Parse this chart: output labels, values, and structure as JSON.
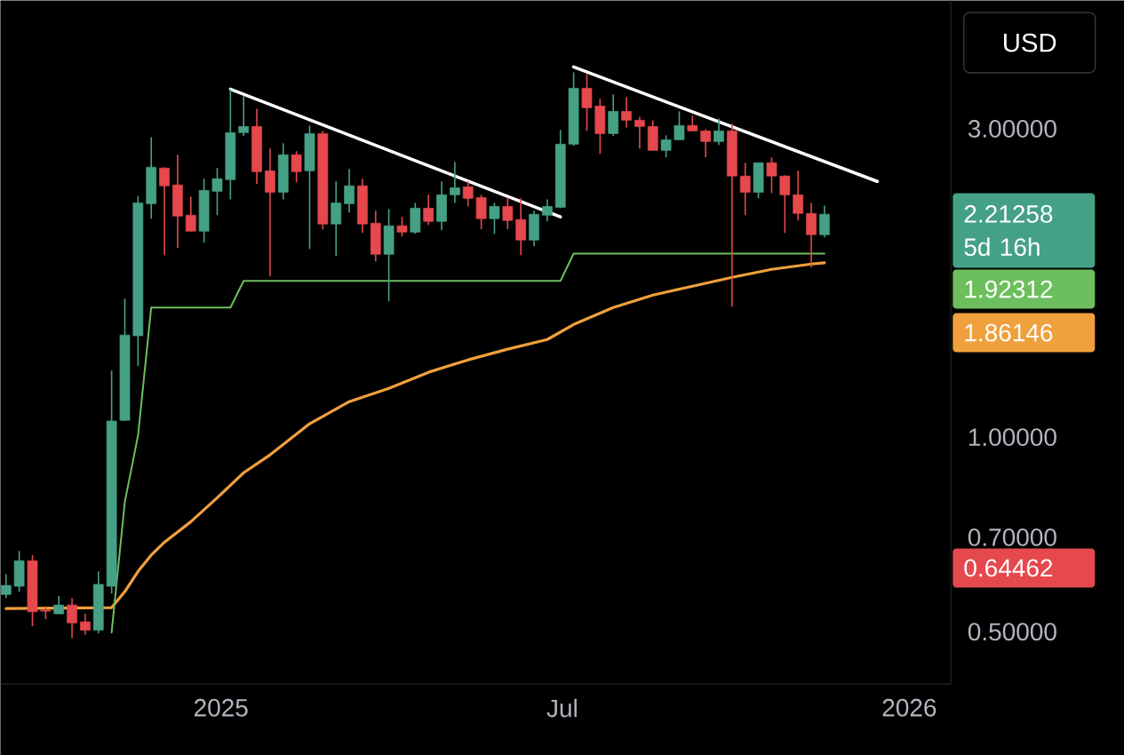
{
  "chart_data": {
    "type": "candlestick",
    "x": [
      "2024-09-09",
      "2024-09-16",
      "2024-09-23",
      "2024-09-30",
      "2024-10-07",
      "2024-10-14",
      "2024-10-21",
      "2024-10-28",
      "2024-11-04",
      "2024-11-11",
      "2024-11-18",
      "2024-11-25",
      "2024-12-02",
      "2024-12-09",
      "2024-12-16",
      "2024-12-23",
      "2024-12-30",
      "2025-01-06",
      "2025-01-13",
      "2025-01-20",
      "2025-01-27",
      "2025-02-03",
      "2025-02-10",
      "2025-02-17",
      "2025-02-24",
      "2025-03-03",
      "2025-03-10",
      "2025-03-17",
      "2025-03-24",
      "2025-03-31",
      "2025-04-07",
      "2025-04-14",
      "2025-04-21",
      "2025-04-28",
      "2025-05-05",
      "2025-05-12",
      "2025-05-19",
      "2025-05-26",
      "2025-06-02",
      "2025-06-09",
      "2025-06-16",
      "2025-06-23",
      "2025-06-30",
      "2025-07-07",
      "2025-07-14",
      "2025-07-21",
      "2025-07-28",
      "2025-08-04",
      "2025-08-11",
      "2025-08-18",
      "2025-08-25",
      "2025-09-01",
      "2025-09-08",
      "2025-09-15",
      "2025-09-22",
      "2025-09-29",
      "2025-10-06",
      "2025-10-13",
      "2025-10-20",
      "2025-10-27",
      "2025-11-03",
      "2025-11-10",
      "2025-11-17"
    ],
    "ohlc": [
      [
        0.571,
        0.614,
        0.564,
        0.59
      ],
      [
        0.588,
        0.667,
        0.577,
        0.644
      ],
      [
        0.644,
        0.657,
        0.51,
        0.537
      ],
      [
        0.54,
        0.548,
        0.523,
        0.538
      ],
      [
        0.533,
        0.568,
        0.533,
        0.55
      ],
      [
        0.55,
        0.564,
        0.489,
        0.516
      ],
      [
        0.518,
        0.533,
        0.495,
        0.503
      ],
      [
        0.503,
        0.62,
        0.497,
        0.592
      ],
      [
        0.588,
        1.268,
        0.573,
        1.059
      ],
      [
        1.062,
        1.638,
        1.059,
        1.439
      ],
      [
        1.435,
        2.363,
        1.288,
        2.304
      ],
      [
        2.297,
        2.912,
        2.178,
        2.616
      ],
      [
        2.608,
        2.616,
        1.913,
        2.448
      ],
      [
        2.456,
        2.735,
        1.962,
        2.198
      ],
      [
        2.205,
        2.356,
        2.083,
        2.083
      ],
      [
        2.083,
        2.511,
        1.999,
        2.409
      ],
      [
        2.401,
        2.608,
        2.205,
        2.511
      ],
      [
        2.503,
        3.455,
        2.333,
        2.959
      ],
      [
        2.959,
        3.369,
        2.922,
        3.025
      ],
      [
        3.025,
        3.222,
        2.464,
        2.575
      ],
      [
        2.583,
        2.796,
        1.773,
        2.393
      ],
      [
        2.393,
        2.849,
        2.333,
        2.735
      ],
      [
        2.735,
        2.77,
        2.479,
        2.575
      ],
      [
        2.583,
        3.035,
        1.955,
        2.949
      ],
      [
        2.949,
        2.977,
        2.097,
        2.137
      ],
      [
        2.137,
        2.487,
        1.907,
        2.304
      ],
      [
        2.297,
        2.599,
        2.226,
        2.448
      ],
      [
        2.448,
        2.511,
        2.07,
        2.137
      ],
      [
        2.143,
        2.24,
        1.871,
        1.919
      ],
      [
        1.919,
        2.254,
        1.623,
        2.123
      ],
      [
        2.123,
        2.192,
        2.044,
        2.076
      ],
      [
        2.076,
        2.304,
        2.063,
        2.261
      ],
      [
        2.261,
        2.371,
        2.13,
        2.157
      ],
      [
        2.157,
        2.487,
        2.089,
        2.371
      ],
      [
        2.371,
        2.666,
        2.304,
        2.432
      ],
      [
        2.44,
        2.487,
        2.275,
        2.341
      ],
      [
        2.348,
        2.371,
        2.097,
        2.178
      ],
      [
        2.178,
        2.304,
        2.063,
        2.275
      ],
      [
        2.275,
        2.348,
        2.097,
        2.164
      ],
      [
        2.171,
        2.341,
        1.913,
        2.018
      ],
      [
        2.018,
        2.24,
        1.974,
        2.212
      ],
      [
        2.205,
        2.333,
        2.157,
        2.275
      ],
      [
        2.268,
        2.987,
        2.261,
        2.84
      ],
      [
        2.84,
        3.668,
        2.822,
        3.466
      ],
      [
        3.466,
        3.646,
        2.977,
        3.233
      ],
      [
        3.253,
        3.337,
        2.743,
        2.949
      ],
      [
        2.949,
        3.39,
        2.922,
        3.192
      ],
      [
        3.192,
        3.358,
        3.015,
        3.093
      ],
      [
        3.093,
        3.132,
        2.796,
        3.025
      ],
      [
        3.025,
        3.093,
        2.778,
        2.778
      ],
      [
        2.778,
        2.931,
        2.709,
        2.885
      ],
      [
        2.885,
        3.192,
        2.885,
        3.035
      ],
      [
        3.035,
        3.142,
        2.977,
        2.977
      ],
      [
        2.977,
        2.996,
        2.709,
        2.867
      ],
      [
        2.867,
        3.112,
        2.831,
        2.977
      ],
      [
        2.977,
        3.054,
        1.592,
        2.535
      ],
      [
        2.535,
        2.658,
        2.205,
        2.393
      ],
      [
        2.393,
        2.658,
        2.341,
        2.658
      ],
      [
        2.658,
        2.709,
        2.386,
        2.535
      ],
      [
        2.535,
        2.543,
        2.07,
        2.371
      ],
      [
        2.371,
        2.583,
        2.164,
        2.219
      ],
      [
        2.219,
        2.304,
        1.83,
        2.057
      ],
      [
        2.057,
        2.282,
        2.037,
        2.21258
      ]
    ],
    "colors": [
      "#45a186",
      "#45a186",
      "#e5484d",
      "#e5484d",
      "#45a186",
      "#e5484d",
      "#e5484d",
      "#45a186",
      "#45a186",
      "#45a186",
      "#45a186",
      "#45a186",
      "#e5484d",
      "#e5484d",
      "#e5484d",
      "#45a186",
      "#45a186",
      "#45a186",
      "#45a186",
      "#e5484d",
      "#e5484d",
      "#45a186",
      "#e5484d",
      "#45a186",
      "#e5484d",
      "#45a186",
      "#45a186",
      "#e5484d",
      "#e5484d",
      "#45a186",
      "#e5484d",
      "#45a186",
      "#e5484d",
      "#45a186",
      "#45a186",
      "#e5484d",
      "#e5484d",
      "#45a186",
      "#e5484d",
      "#e5484d",
      "#45a186",
      "#45a186",
      "#45a186",
      "#45a186",
      "#e5484d",
      "#e5484d",
      "#45a186",
      "#e5484d",
      "#e5484d",
      "#e5484d",
      "#45a186",
      "#45a186",
      "#e5484d",
      "#e5484d",
      "#45a186",
      "#e5484d",
      "#e5484d",
      "#45a186",
      "#e5484d",
      "#e5484d",
      "#e5484d",
      "#e5484d",
      "#45a186"
    ],
    "series": [
      {
        "type": "line",
        "color": "#f0a03c",
        "x": [
          "2024-09-09",
          "2024-11-04",
          "2024-11-11",
          "2024-11-18",
          "2024-11-25",
          "2024-12-02",
          "2024-12-16",
          "2024-12-30",
          "2025-01-13",
          "2025-01-27",
          "2025-02-17",
          "2025-03-10",
          "2025-03-31",
          "2025-04-21",
          "2025-05-12",
          "2025-06-02",
          "2025-06-23",
          "2025-07-07",
          "2025-07-28",
          "2025-08-18",
          "2025-09-08",
          "2025-09-29",
          "2025-10-20",
          "2025-11-10",
          "2025-11-17"
        ],
        "values": [
          0.543,
          0.545,
          0.577,
          0.62,
          0.657,
          0.688,
          0.74,
          0.806,
          0.881,
          0.939,
          1.049,
          1.135,
          1.19,
          1.26,
          1.317,
          1.368,
          1.416,
          1.494,
          1.587,
          1.659,
          1.712,
          1.767,
          1.818,
          1.853,
          1.86146
        ]
      },
      {
        "type": "line",
        "color": "#6cbf5c",
        "x": [
          "2024-11-04",
          "2024-11-11",
          "2024-11-18",
          "2024-11-25",
          "2025-01-06",
          "2025-01-13",
          "2025-06-30",
          "2025-07-07",
          "2025-11-17"
        ],
        "values": [
          0.499,
          0.794,
          1.006,
          1.587,
          1.587,
          1.745,
          1.745,
          1.92312,
          1.92312
        ]
      },
      {
        "type": "line",
        "color": "#ffffff",
        "x": [
          "2025-01-06",
          "2025-06-30"
        ],
        "values": [
          3.455,
          2.192
        ]
      },
      {
        "type": "line",
        "color": "#ffffff",
        "x": [
          "2025-07-07",
          "2025-12-15"
        ],
        "values": [
          3.739,
          2.487
        ]
      }
    ],
    "log": "y",
    "xlim": [
      "2024-09-06",
      "2026-01-23"
    ],
    "ylim": [
      0.415,
      4.74
    ],
    "xticks": [
      {
        "value": "2025-01-01",
        "label": "2025"
      },
      {
        "value": "2025-07-01",
        "label": "Jul"
      },
      {
        "value": "2026-01-01",
        "label": "2026"
      }
    ],
    "yticks": [
      {
        "value": 0.5,
        "label": "0.50000"
      },
      {
        "value": 0.7,
        "label": "0.70000"
      },
      {
        "value": 1,
        "label": "1.00000"
      },
      {
        "value": 3,
        "label": "3.00000"
      }
    ],
    "annotations": [
      "USD",
      "2.21258",
      "5d 16h",
      "1.92312",
      "1.86146",
      "0.64462"
    ]
  }
}
